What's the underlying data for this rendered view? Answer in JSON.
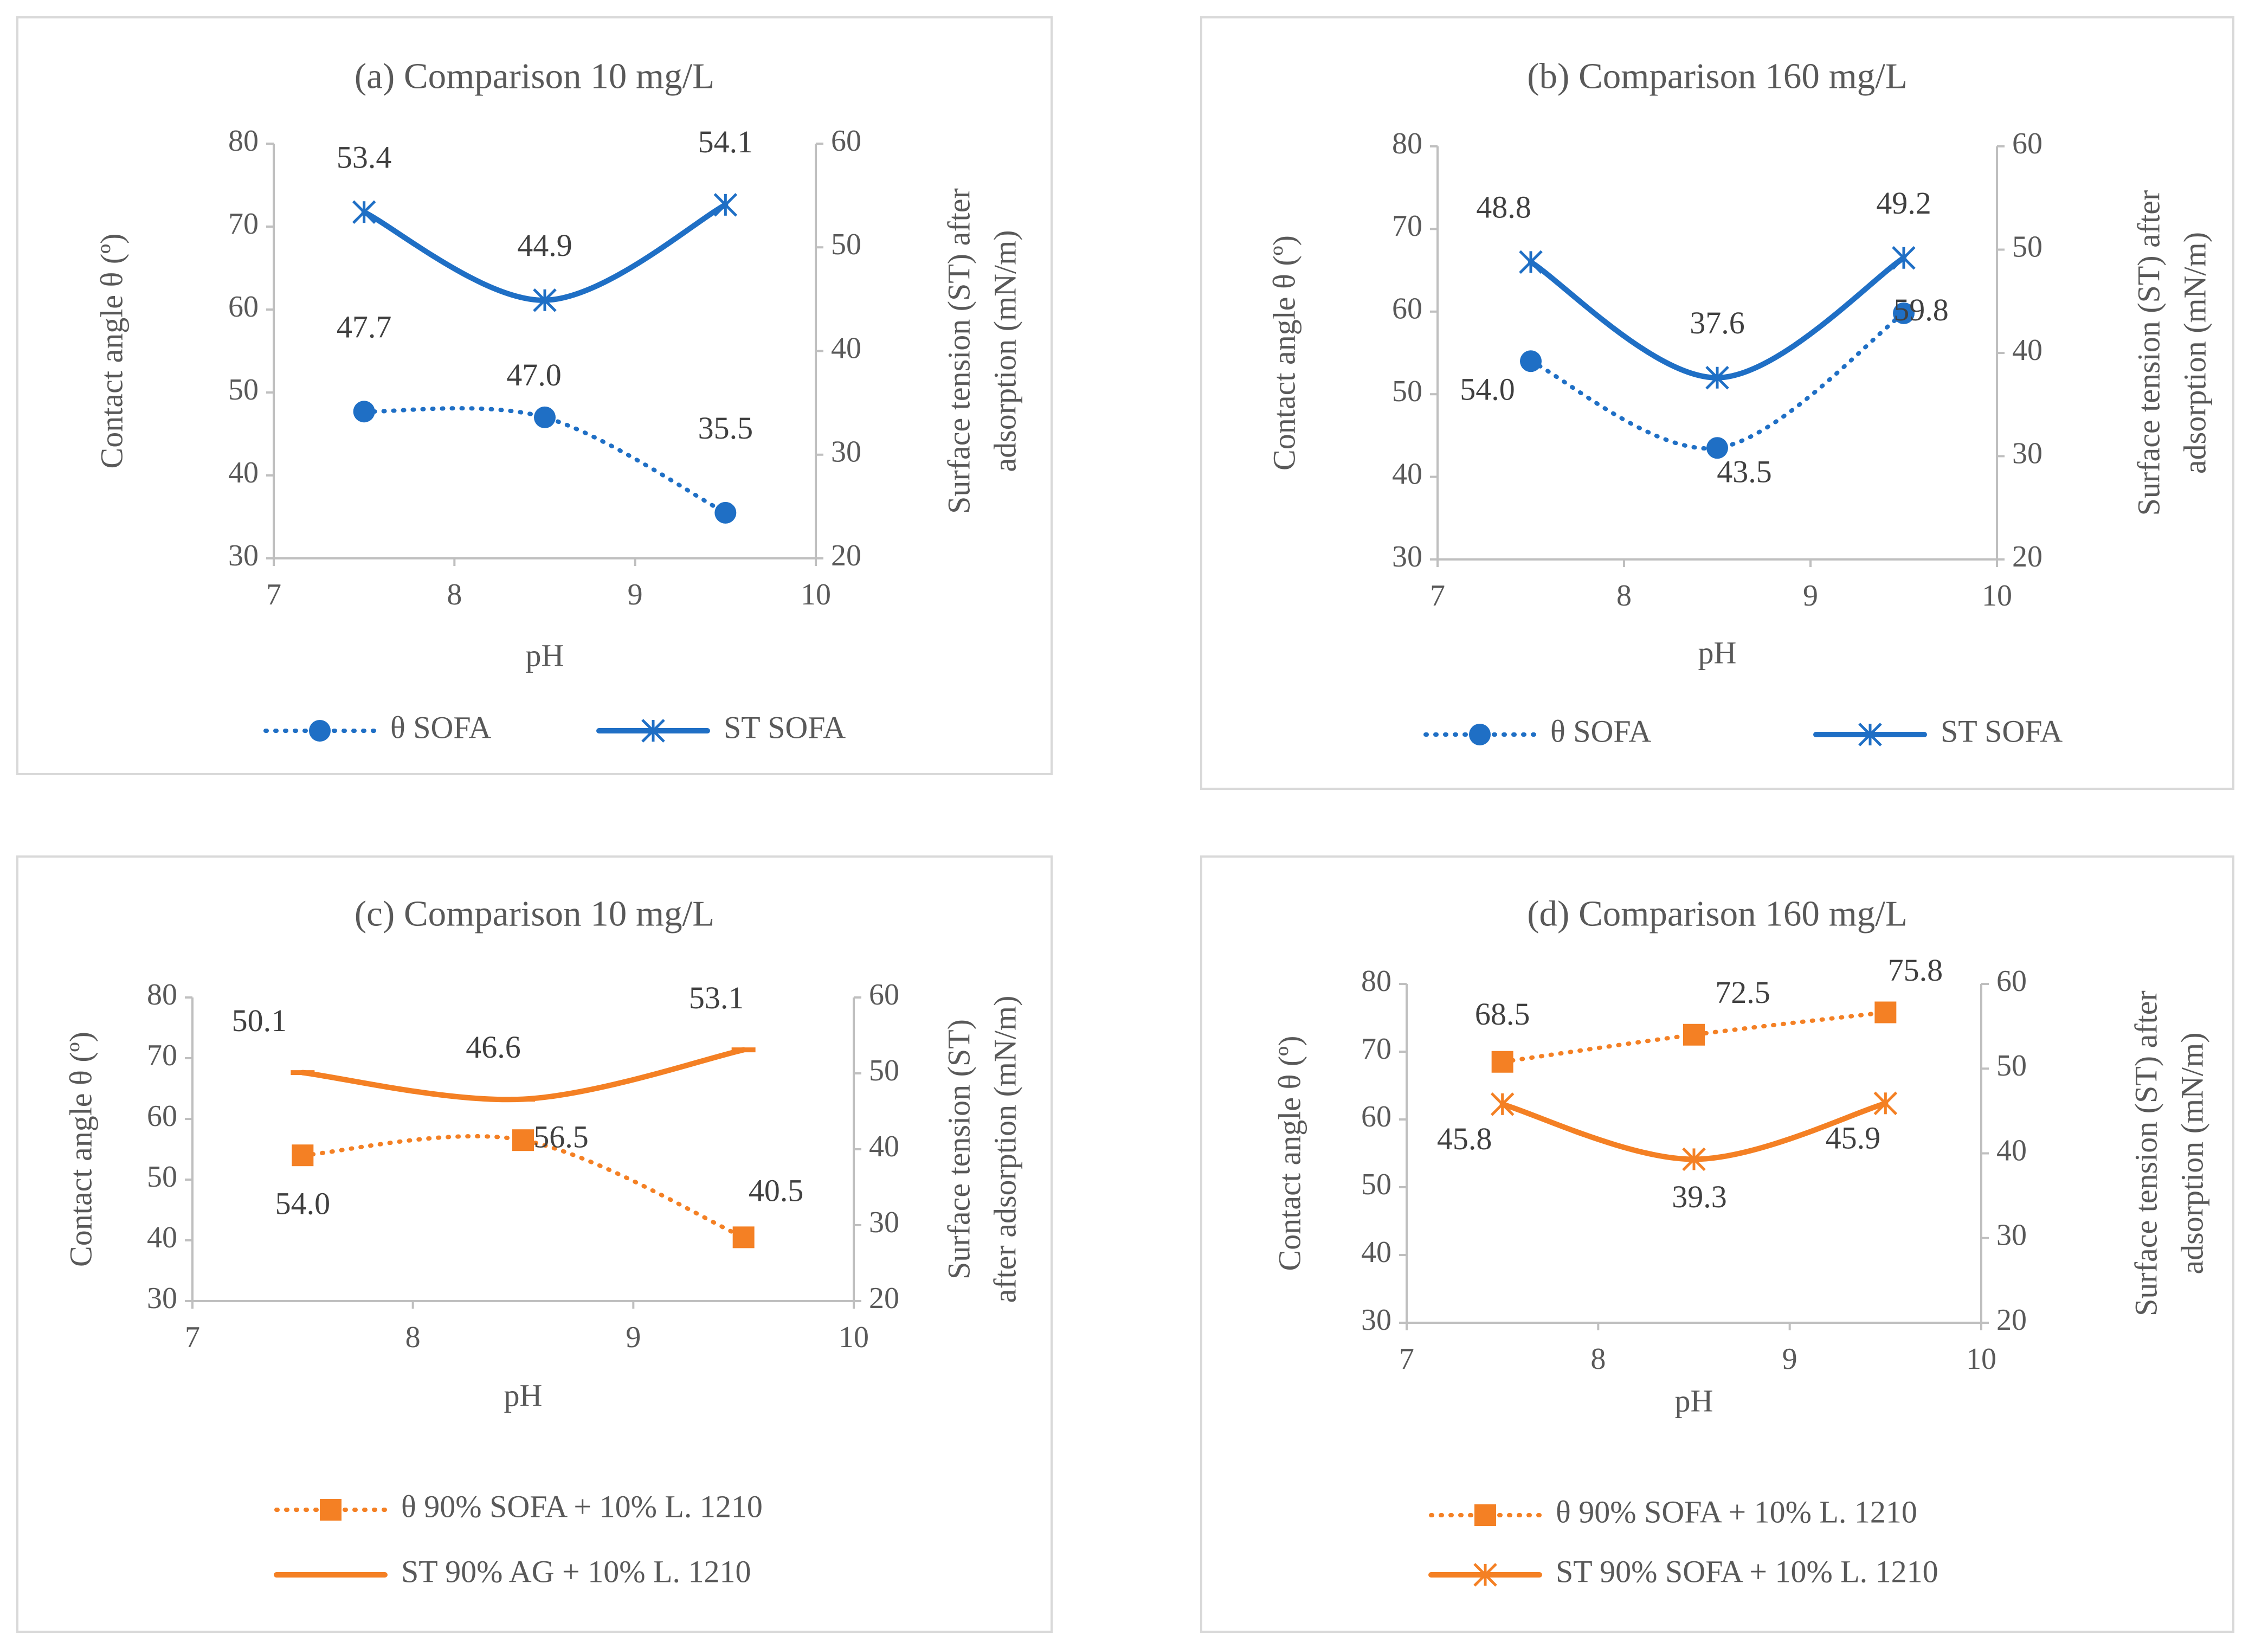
{
  "colors": {
    "blue": "#1f6fc5",
    "orange": "#f48024",
    "axis": "#bfbfbf",
    "text": "#595959"
  },
  "chart_data": [
    {
      "type": "line",
      "title": "(a) Comparison 10 mg/L",
      "xlabel": "pH",
      "ylabel": "Contact angle θ (º)",
      "y2label_lines": [
        "Surface tension (ST) after",
        "adsorption (mN/m)"
      ],
      "xlim": [
        7,
        10
      ],
      "ylim": [
        30,
        80
      ],
      "y2lim": [
        20,
        60
      ],
      "x_ticks": [
        "7",
        "8",
        "9",
        "10"
      ],
      "y_ticks": [
        "30",
        "40",
        "50",
        "60",
        "70",
        "80"
      ],
      "y2_ticks": [
        "20",
        "30",
        "40",
        "50",
        "60"
      ],
      "series": [
        {
          "name": "θ SOFA",
          "axis": "left",
          "style": "dotted",
          "marker": "circle",
          "color": "#1f6fc5",
          "x": [
            7.5,
            8.5,
            9.5
          ],
          "values": [
            47.7,
            47.0,
            35.5
          ],
          "labels": [
            "47.7",
            "47.0",
            "35.5"
          ]
        },
        {
          "name": "ST SOFA",
          "axis": "right",
          "style": "solid",
          "marker": "star",
          "color": "#1f6fc5",
          "x": [
            7.5,
            8.5,
            9.5
          ],
          "values": [
            53.4,
            44.9,
            54.1
          ],
          "labels": [
            "53.4",
            "44.9",
            "54.1"
          ]
        }
      ],
      "legend": [
        "θ SOFA",
        "ST SOFA"
      ]
    },
    {
      "type": "line",
      "title": "(b) Comparison 160 mg/L",
      "xlabel": "pH",
      "ylabel": "Contact angle θ (º)",
      "y2label_lines": [
        "Surface tension (ST) after",
        "adsorption (mN/m)"
      ],
      "xlim": [
        7,
        10
      ],
      "ylim": [
        30,
        80
      ],
      "y2lim": [
        20,
        60
      ],
      "x_ticks": [
        "7",
        "8",
        "9",
        "10"
      ],
      "y_ticks": [
        "30",
        "40",
        "50",
        "60",
        "70",
        "80"
      ],
      "y2_ticks": [
        "20",
        "30",
        "40",
        "50",
        "60"
      ],
      "series": [
        {
          "name": "θ SOFA",
          "axis": "left",
          "style": "dotted",
          "marker": "circle",
          "color": "#1f6fc5",
          "x": [
            7.5,
            8.5,
            9.5
          ],
          "values": [
            54.0,
            43.5,
            59.8
          ],
          "labels": [
            "54.0",
            "43.5",
            "59.8"
          ]
        },
        {
          "name": "ST SOFA",
          "axis": "right",
          "style": "solid",
          "marker": "star",
          "color": "#1f6fc5",
          "x": [
            7.5,
            8.5,
            9.5
          ],
          "values": [
            48.8,
            37.6,
            49.2
          ],
          "labels": [
            "48.8",
            "37.6",
            "49.2"
          ]
        }
      ],
      "legend": [
        "θ SOFA",
        "ST SOFA"
      ]
    },
    {
      "type": "line",
      "title": "(c) Comparison 10 mg/L",
      "xlabel": "pH",
      "ylabel": "Contact angle θ (º)",
      "y2label_lines": [
        "Surface tension (ST)",
        "after adsorption (mN/m)"
      ],
      "xlim": [
        7,
        10
      ],
      "ylim": [
        30,
        80
      ],
      "y2lim": [
        20,
        60
      ],
      "x_ticks": [
        "7",
        "8",
        "9",
        "10"
      ],
      "y_ticks": [
        "30",
        "40",
        "50",
        "60",
        "70",
        "80"
      ],
      "y2_ticks": [
        "20",
        "30",
        "40",
        "50",
        "60"
      ],
      "series": [
        {
          "name": "θ 90% SOFA + 10% L. 1210",
          "axis": "left",
          "style": "dotted",
          "marker": "square",
          "color": "#f48024",
          "x": [
            7.5,
            8.5,
            9.5
          ],
          "values": [
            54.0,
            56.5,
            40.5
          ],
          "labels": [
            "54.0",
            "56.5",
            "40.5"
          ]
        },
        {
          "name": "ST 90% AG + 10% L. 1210",
          "axis": "right",
          "style": "solid",
          "marker": "dash",
          "color": "#f48024",
          "x": [
            7.5,
            8.5,
            9.5
          ],
          "values": [
            50.1,
            46.6,
            53.1
          ],
          "labels": [
            "50.1",
            "46.6",
            "53.1"
          ]
        }
      ],
      "legend": [
        "θ 90% SOFA + 10% L. 1210",
        "ST 90% AG + 10% L. 1210"
      ]
    },
    {
      "type": "line",
      "title": "(d) Comparison 160 mg/L",
      "xlabel": "pH",
      "ylabel": "Contact angle θ (º)",
      "y2label_lines": [
        "Surface tension (ST) after",
        "adsorption (mN/m)"
      ],
      "xlim": [
        7,
        10
      ],
      "ylim": [
        30,
        80
      ],
      "y2lim": [
        20,
        60
      ],
      "x_ticks": [
        "7",
        "8",
        "9",
        "10"
      ],
      "y_ticks": [
        "30",
        "40",
        "50",
        "60",
        "70",
        "80"
      ],
      "y2_ticks": [
        "20",
        "30",
        "40",
        "50",
        "60"
      ],
      "series": [
        {
          "name": "θ 90% SOFA + 10% L. 1210",
          "axis": "left",
          "style": "dotted",
          "marker": "square",
          "color": "#f48024",
          "x": [
            7.5,
            8.5,
            9.5
          ],
          "values": [
            68.5,
            72.5,
            75.8
          ],
          "labels": [
            "68.5",
            "72.5",
            "75.8"
          ]
        },
        {
          "name": "ST 90% SOFA + 10% L. 1210",
          "axis": "right",
          "style": "solid",
          "marker": "star",
          "color": "#f48024",
          "x": [
            7.5,
            8.5,
            9.5
          ],
          "values": [
            45.8,
            39.3,
            45.9
          ],
          "labels": [
            "45.8",
            "39.3",
            "45.9"
          ]
        }
      ],
      "legend": [
        "θ 90% SOFA + 10% L. 1210",
        "ST 90% SOFA + 10% L. 1210"
      ]
    }
  ]
}
